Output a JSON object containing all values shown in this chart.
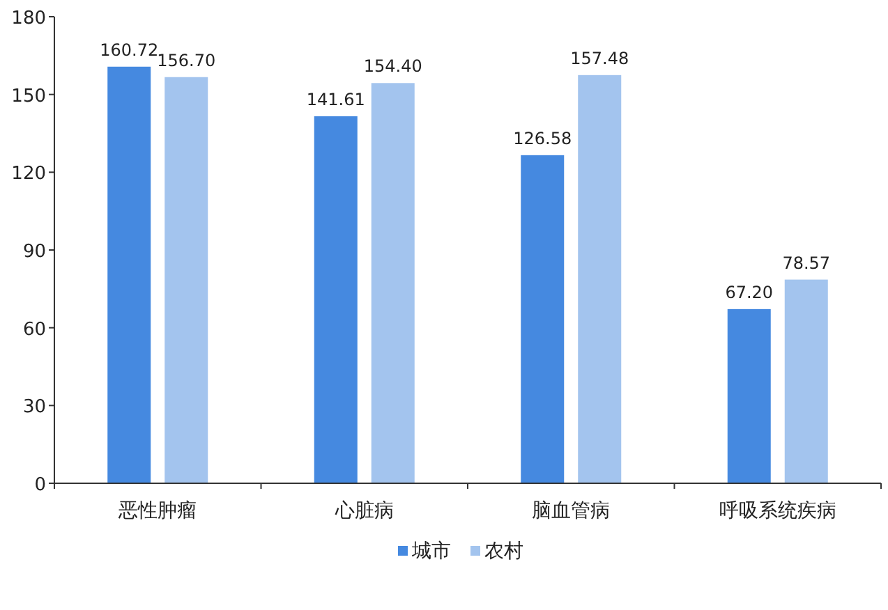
{
  "chart_data": {
    "type": "bar",
    "categories": [
      "恶性肿瘤",
      "心脏病",
      "脑血管病",
      "呼吸系统疾病"
    ],
    "series": [
      {
        "name": "城市",
        "color": "#4589e0",
        "values": [
          160.72,
          141.61,
          126.58,
          67.2
        ],
        "value_labels": [
          "160.72",
          "141.61",
          "126.58",
          "67.20"
        ]
      },
      {
        "name": "农村",
        "color": "#a3c4ee",
        "values": [
          156.7,
          154.4,
          157.48,
          78.57
        ],
        "value_labels": [
          "156.70",
          "154.40",
          "157.48",
          "78.57"
        ]
      }
    ],
    "ylim": [
      0,
      180
    ],
    "yticks": [
      0,
      30,
      60,
      90,
      120,
      150,
      180
    ],
    "legend": "bottom",
    "grid": false
  }
}
